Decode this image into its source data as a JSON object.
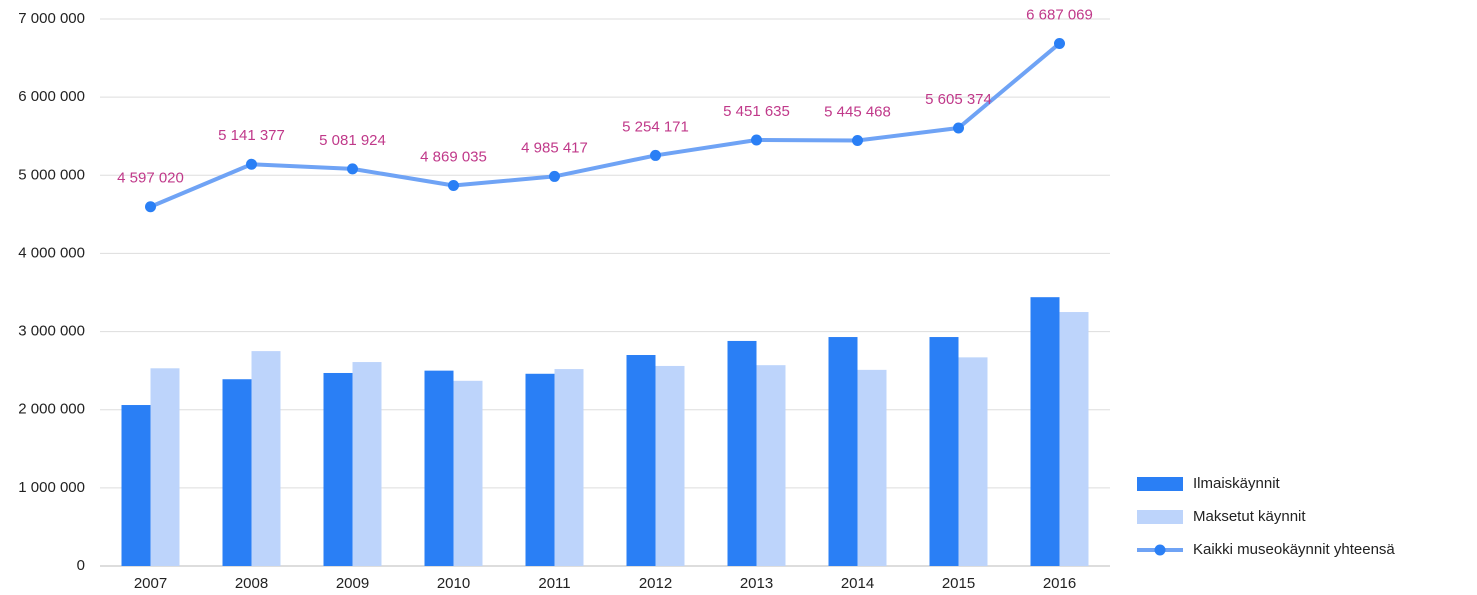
{
  "chart_data": {
    "type": "bar_line",
    "categories": [
      "2007",
      "2008",
      "2009",
      "2010",
      "2011",
      "2012",
      "2013",
      "2014",
      "2015",
      "2016"
    ],
    "series": [
      {
        "name": "Ilmaiskäynnit",
        "type": "bar",
        "color": "#2a7ff5",
        "values": [
          2060000,
          2390000,
          2470000,
          2500000,
          2460000,
          2700000,
          2880000,
          2930000,
          2930000,
          3440000
        ]
      },
      {
        "name": "Maksetut käynnit",
        "type": "bar",
        "color": "#bdd4fb",
        "values": [
          2530000,
          2750000,
          2610000,
          2370000,
          2520000,
          2560000,
          2570000,
          2510000,
          2670000,
          3250000
        ]
      },
      {
        "name": "Kaikki museokäynnit yhteensä",
        "type": "line",
        "color": "#6fa3f5",
        "marker_color": "#2a7ff5",
        "values": [
          4597020,
          5141377,
          5081924,
          4869035,
          4985417,
          5254171,
          5451635,
          5445468,
          5605374,
          6687069
        ],
        "value_labels": [
          "4 597 020",
          "5 141 377",
          "5 081 924",
          "4 869 035",
          "4 985 417",
          "5 254 171",
          "5 451 635",
          "5 445 468",
          "5 605 374",
          "6 687 069"
        ]
      }
    ],
    "ylim": [
      0,
      7000000
    ],
    "yticks": [
      0,
      {
        "value": 1000000,
        "label": "1 000 000"
      },
      {
        "value": 2000000,
        "label": "2 000 000"
      },
      {
        "value": 3000000,
        "label": "3 000 000"
      },
      {
        "value": 4000000,
        "label": "4 000 000"
      },
      {
        "value": 5000000,
        "label": "5 000 000"
      },
      {
        "value": 6000000,
        "label": "6 000 000"
      },
      {
        "value": 7000000,
        "label": "7 000 000"
      }
    ],
    "grid": true,
    "legend": "right"
  }
}
